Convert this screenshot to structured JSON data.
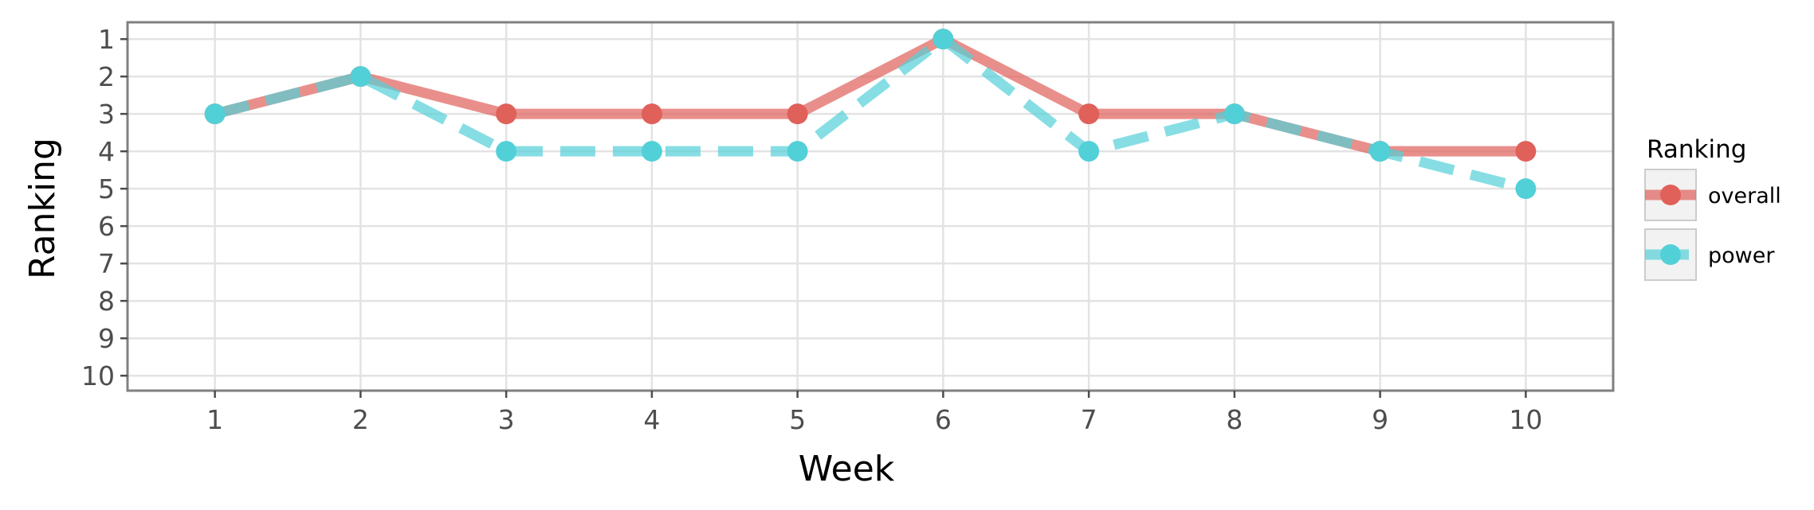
{
  "chart_data": {
    "type": "line",
    "xlabel": "Week",
    "ylabel": "Ranking",
    "x": [
      1,
      2,
      3,
      4,
      5,
      6,
      7,
      8,
      9,
      10
    ],
    "xlim": [
      0.4,
      10.6
    ],
    "ylim": [
      10.4,
      0.55
    ],
    "y_reversed": true,
    "y_ticks": [
      1,
      2,
      3,
      4,
      5,
      6,
      7,
      8,
      9,
      10
    ],
    "grid": true,
    "legend": {
      "title": "Ranking",
      "placement": "right"
    },
    "series": [
      {
        "name": "overall",
        "values": [
          3,
          2,
          3,
          3,
          3,
          1,
          3,
          3,
          4,
          4
        ],
        "color": "#e0605a",
        "dash": "solid"
      },
      {
        "name": "power",
        "values": [
          3,
          2,
          4,
          4,
          4,
          1,
          4,
          3,
          4,
          5
        ],
        "color": "#52d0d8",
        "dash": "dashed"
      }
    ]
  }
}
